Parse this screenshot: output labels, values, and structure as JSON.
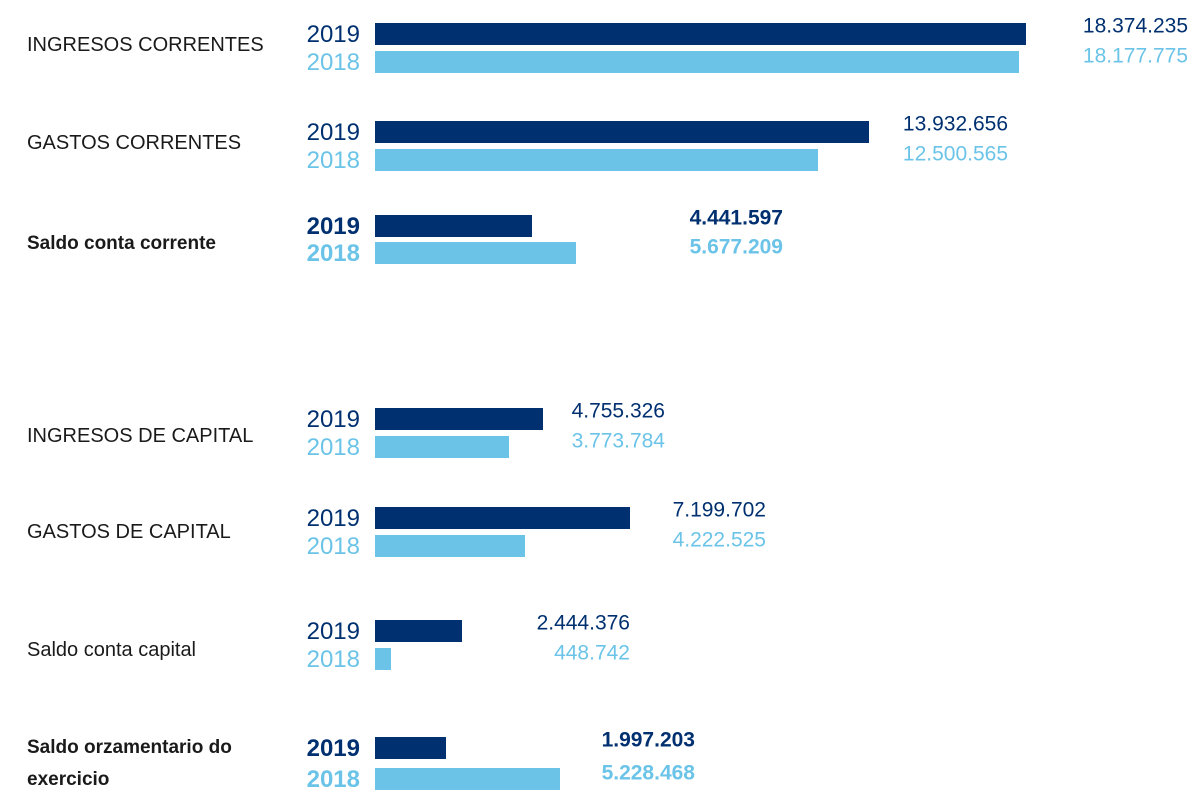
{
  "chart_data": {
    "type": "bar",
    "orientation": "horizontal",
    "categories": [
      "INGRESOS CORRENTES",
      "GASTOS CORRENTES",
      "Saldo conta corrente",
      "INGRESOS DE CAPITAL",
      "GASTOS DE CAPITAL",
      "Saldo conta capital",
      "Saldo orzamentario do exercicio"
    ],
    "series": [
      {
        "name": "2019",
        "color": "#003070",
        "values": [
          18374235,
          13932656,
          4441597,
          4755326,
          7199702,
          2444376,
          1997203
        ],
        "value_labels": [
          "18.374.235",
          "13.932.656",
          "4.441.597",
          "4.755.326",
          "7.199.702",
          "2.444.376",
          "1.997.203"
        ]
      },
      {
        "name": "2018",
        "color": "#6bc4e8",
        "values": [
          18177775,
          12500565,
          5677209,
          3773784,
          4222525,
          448742,
          5228468
        ],
        "value_labels": [
          "18.177.775",
          "12.500.565",
          "5.677.209",
          "3.773.784",
          "4.222.525",
          "448.742",
          "5.228.468"
        ]
      }
    ]
  }
}
